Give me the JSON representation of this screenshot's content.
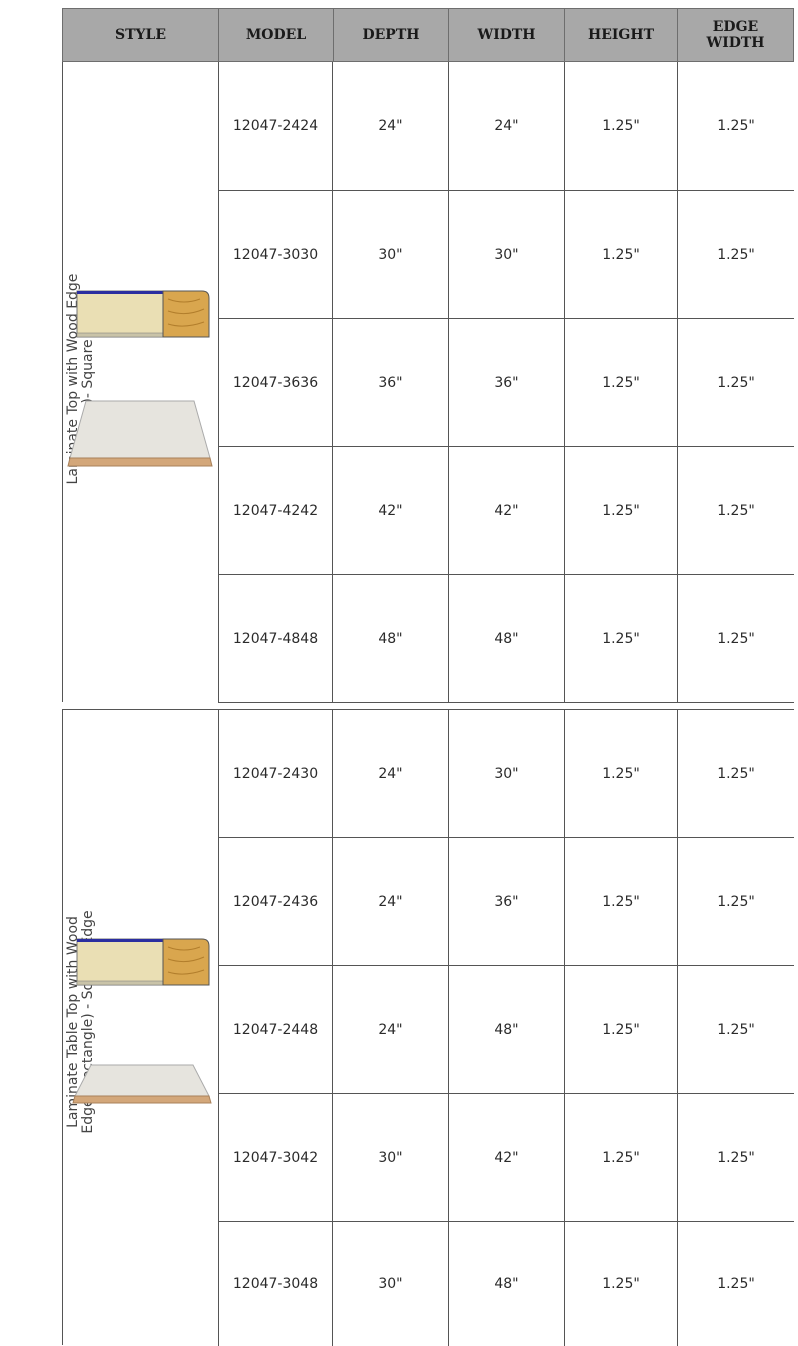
{
  "header": {
    "style": "STYLE",
    "model": "MODEL",
    "depth": "DEPTH",
    "width": "WIDTH",
    "height": "HEIGHT",
    "edge_width_line1": "EDGE",
    "edge_width_line2": "WIDTH"
  },
  "sections": [
    {
      "style_line1": "Laminate Top with Wood Edge",
      "style_line2": "(Square)- Square Edge",
      "rows": [
        {
          "model": "12047-2424",
          "depth": "24\"",
          "width": "24\"",
          "height": "1.25\"",
          "edge_width": "1.25\""
        },
        {
          "model": "12047-3030",
          "depth": "30\"",
          "width": "30\"",
          "height": "1.25\"",
          "edge_width": "1.25\""
        },
        {
          "model": "12047-3636",
          "depth": "36\"",
          "width": "36\"",
          "height": "1.25\"",
          "edge_width": "1.25\""
        },
        {
          "model": "12047-4242",
          "depth": "42\"",
          "width": "42\"",
          "height": "1.25\"",
          "edge_width": "1.25\""
        },
        {
          "model": "12047-4848",
          "depth": "48\"",
          "width": "48\"",
          "height": "1.25\"",
          "edge_width": "1.25\""
        }
      ]
    },
    {
      "style_line1": "Laminate Table Top with Wood",
      "style_line2": "Edge (Rectangle) - Square Edge",
      "rows": [
        {
          "model": "12047-2430",
          "depth": "24\"",
          "width": "30\"",
          "height": "1.25\"",
          "edge_width": "1.25\""
        },
        {
          "model": "12047-2436",
          "depth": "24\"",
          "width": "36\"",
          "height": "1.25\"",
          "edge_width": "1.25\""
        },
        {
          "model": "12047-2448",
          "depth": "24\"",
          "width": "48\"",
          "height": "1.25\"",
          "edge_width": "1.25\""
        },
        {
          "model": "12047-3042",
          "depth": "30\"",
          "width": "42\"",
          "height": "1.25\"",
          "edge_width": "1.25\""
        },
        {
          "model": "12047-3048",
          "depth": "30\"",
          "width": "48\"",
          "height": "1.25\"",
          "edge_width": "1.25\""
        }
      ]
    }
  ]
}
